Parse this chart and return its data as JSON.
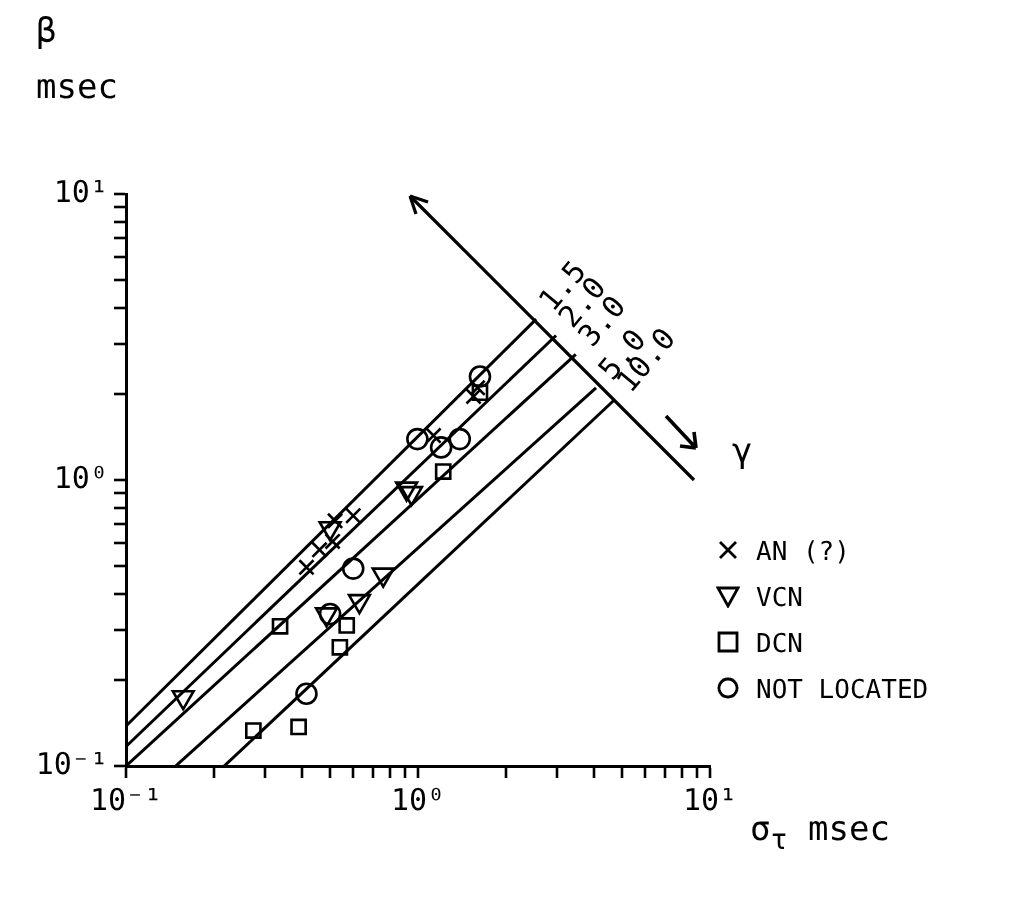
{
  "chart_data": {
    "type": "scatter",
    "xlabel": "σ$_{τ}$  msec",
    "ylabel": "β msec",
    "log": "xy",
    "xlim": [
      0.1,
      10
    ],
    "ylim": [
      0.1,
      10
    ],
    "xticks": [
      {
        "value": 0.1,
        "label": "10⁻¹"
      },
      {
        "value": 0.2,
        "label": null
      },
      {
        "value": 0.3,
        "label": null
      },
      {
        "value": 0.4,
        "label": null
      },
      {
        "value": 0.5,
        "label": null
      },
      {
        "value": 0.6,
        "label": null
      },
      {
        "value": 0.7,
        "label": null
      },
      {
        "value": 0.8,
        "label": null
      },
      {
        "value": 0.9,
        "label": null
      },
      {
        "value": 1,
        "label": "10⁰"
      },
      {
        "value": 2,
        "label": null
      },
      {
        "value": 3,
        "label": null
      },
      {
        "value": 4,
        "label": null
      },
      {
        "value": 5,
        "label": null
      },
      {
        "value": 6,
        "label": null
      },
      {
        "value": 7,
        "label": null
      },
      {
        "value": 8,
        "label": null
      },
      {
        "value": 9,
        "label": null
      },
      {
        "value": 10,
        "label": "10¹"
      }
    ],
    "yticks": [
      {
        "value": 0.1,
        "label": "10⁻¹"
      },
      {
        "value": 0.2,
        "label": null
      },
      {
        "value": 0.3,
        "label": null
      },
      {
        "value": 0.4,
        "label": null
      },
      {
        "value": 0.5,
        "label": null
      },
      {
        "value": 0.6,
        "label": null
      },
      {
        "value": 0.7,
        "label": null
      },
      {
        "value": 0.8,
        "label": null
      },
      {
        "value": 0.9,
        "label": null
      },
      {
        "value": 1,
        "label": "10⁰"
      },
      {
        "value": 2,
        "label": null
      },
      {
        "value": 3,
        "label": null
      },
      {
        "value": 4,
        "label": null
      },
      {
        "value": 5,
        "label": null
      },
      {
        "value": 6,
        "label": null
      },
      {
        "value": 7,
        "label": null
      },
      {
        "value": 8,
        "label": null
      },
      {
        "value": 9,
        "label": null
      },
      {
        "value": 10,
        "label": "10¹"
      }
    ],
    "grid": false,
    "legend": "right",
    "legend_title": "γ",
    "series": [
      {
        "name": "AN (?)",
        "color": "#000000",
        "marker": "cross",
        "x": [
          0.6,
          0.415,
          0.51,
          1.13,
          1.55,
          1.6,
          0.52,
          0.46
        ],
        "values": [
          0.75,
          0.495,
          0.61,
          1.43,
          1.96,
          2.1,
          0.72,
          0.57
        ]
      },
      {
        "name": "VCN",
        "color": "#000000",
        "marker": "triangle",
        "x": [
          0.157,
          0.76,
          0.914,
          0.95,
          0.5,
          0.63,
          0.486
        ],
        "values": [
          0.174,
          0.467,
          0.933,
          0.9,
          0.678,
          0.377,
          0.339
        ]
      },
      {
        "name": "DCN",
        "color": "#000000",
        "marker": "square",
        "x": [
          0.273,
          0.39,
          0.337,
          0.54,
          1.22,
          0.57,
          1.63
        ],
        "values": [
          0.133,
          0.137,
          0.308,
          0.26,
          1.07,
          0.31,
          2.02
        ]
      },
      {
        "name": "NOT LOCATED",
        "color": "#000000",
        "marker": "circle",
        "x": [
          0.415,
          0.995,
          1.39,
          1.63,
          0.6,
          0.5,
          1.2
        ],
        "values": [
          0.179,
          1.39,
          1.39,
          2.3,
          0.49,
          0.34,
          1.3
        ]
      },
      {
        "name": "1.5",
        "type": "line",
        "color": "#000000",
        "marker": "none",
        "x": [
          0.1,
          2.54
        ],
        "values": [
          0.138,
          3.65
        ]
      },
      {
        "name": "2.0",
        "type": "line",
        "color": "#000000",
        "marker": "none",
        "x": [
          0.1,
          2.97
        ],
        "values": [
          0.117,
          3.2
        ]
      },
      {
        "name": "3.0",
        "type": "line",
        "color": "#000000",
        "marker": "none",
        "x": [
          0.1,
          3.47
        ],
        "values": [
          0.1,
          2.75
        ]
      },
      {
        "name": "5.0",
        "type": "line",
        "color": "#000000",
        "marker": "none",
        "x": [
          0.148,
          4.07
        ],
        "values": [
          0.1,
          2.1
        ]
      },
      {
        "name": "10.0",
        "type": "line",
        "color": "#000000",
        "marker": "none",
        "x": [
          0.217,
          4.69
        ],
        "values": [
          0.1,
          1.9
        ]
      }
    ]
  }
}
